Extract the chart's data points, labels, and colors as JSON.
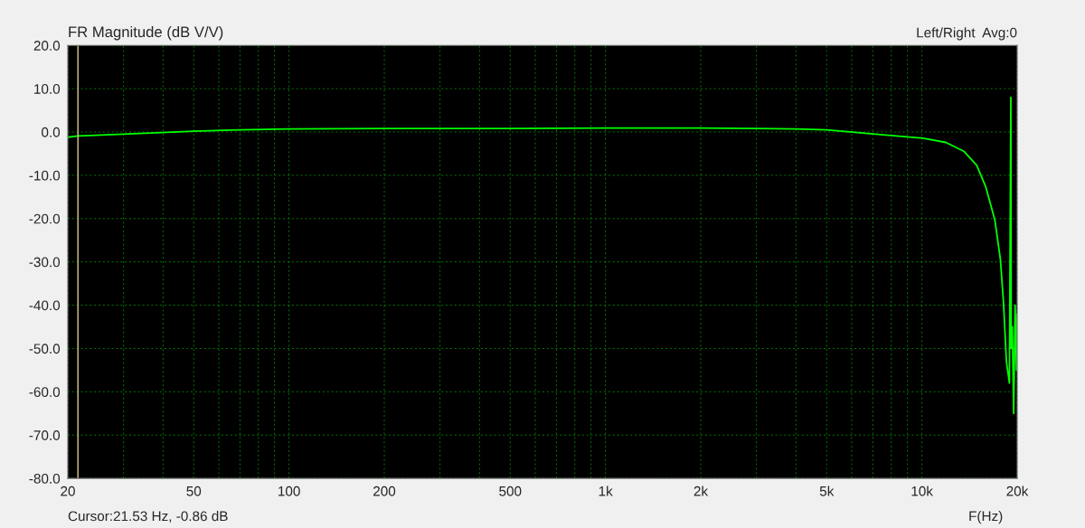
{
  "chart_data": {
    "type": "line",
    "title": "FR Magnitude (dB V/V)",
    "subtitle": "Left/Right  Avg:0",
    "xlabel": "F(Hz)",
    "annotations": [
      "Cursor:21.53 Hz, -0.86 dB"
    ],
    "log": "x",
    "grid": true,
    "legend": false,
    "marker": "none",
    "line_style": "solid",
    "series": [
      {
        "color": "#00ff00",
        "x": [
          20,
          21.53,
          30,
          50,
          70,
          100,
          200,
          500,
          1000,
          2000,
          3000,
          4000,
          5000,
          7700,
          10000,
          11900,
          13600,
          14900,
          15900,
          17000,
          17700,
          18100,
          18500,
          18900,
          19100,
          19150,
          19300,
          19500,
          19700,
          19900,
          20000
        ],
        "values": [
          -1.2,
          -0.9,
          -0.5,
          0.2,
          0.5,
          0.7,
          0.8,
          0.8,
          0.9,
          0.9,
          0.8,
          0.7,
          0.5,
          -0.7,
          -1.4,
          -2.4,
          -4.5,
          -7.7,
          -12.6,
          -20.3,
          -29.4,
          -39.2,
          -53.1,
          -58,
          8,
          -50,
          -45,
          -65,
          -40,
          -55,
          -42
        ]
      }
    ],
    "ref_lines": [
      {
        "axis": "x",
        "value": 21.53,
        "color": "#d8c890"
      }
    ],
    "xlim": [
      20,
      20000
    ],
    "xticks": [
      20,
      {
        "value": 30,
        "label": null
      },
      {
        "value": 40,
        "label": null
      },
      50,
      {
        "value": 60,
        "label": null
      },
      {
        "value": 70,
        "label": null
      },
      {
        "value": 80,
        "label": null
      },
      {
        "value": 90,
        "label": null
      },
      100,
      200,
      {
        "value": 300,
        "label": null
      },
      {
        "value": 400,
        "label": null
      },
      500,
      {
        "value": 600,
        "label": null
      },
      {
        "value": 700,
        "label": null
      },
      {
        "value": 800,
        "label": null
      },
      {
        "value": 900,
        "label": null
      },
      {
        "value": 1000,
        "label": "1k"
      },
      {
        "value": 2000,
        "label": "2k"
      },
      {
        "value": 3000,
        "label": null
      },
      {
        "value": 4000,
        "label": null
      },
      {
        "value": 5000,
        "label": "5k"
      },
      {
        "value": 6000,
        "label": null
      },
      {
        "value": 7000,
        "label": null
      },
      {
        "value": 8000,
        "label": null
      },
      {
        "value": 9000,
        "label": null
      },
      {
        "value": 10000,
        "label": "10k"
      },
      {
        "value": 20000,
        "label": "20k"
      }
    ],
    "ylim": [
      -80,
      20
    ],
    "yticks": [
      {
        "value": -80,
        "label": "-80.0"
      },
      {
        "value": -70,
        "label": "-70.0"
      },
      {
        "value": -60,
        "label": "-60.0"
      },
      {
        "value": -50,
        "label": "-50.0"
      },
      {
        "value": -40,
        "label": "-40.0"
      },
      {
        "value": -30,
        "label": "-30.0"
      },
      {
        "value": -20,
        "label": "-20.0"
      },
      {
        "value": -10,
        "label": "-10.0"
      },
      {
        "value": 0,
        "label": "0.0"
      },
      {
        "value": 10,
        "label": "10.0"
      },
      {
        "value": 20,
        "label": "20.0"
      }
    ]
  }
}
